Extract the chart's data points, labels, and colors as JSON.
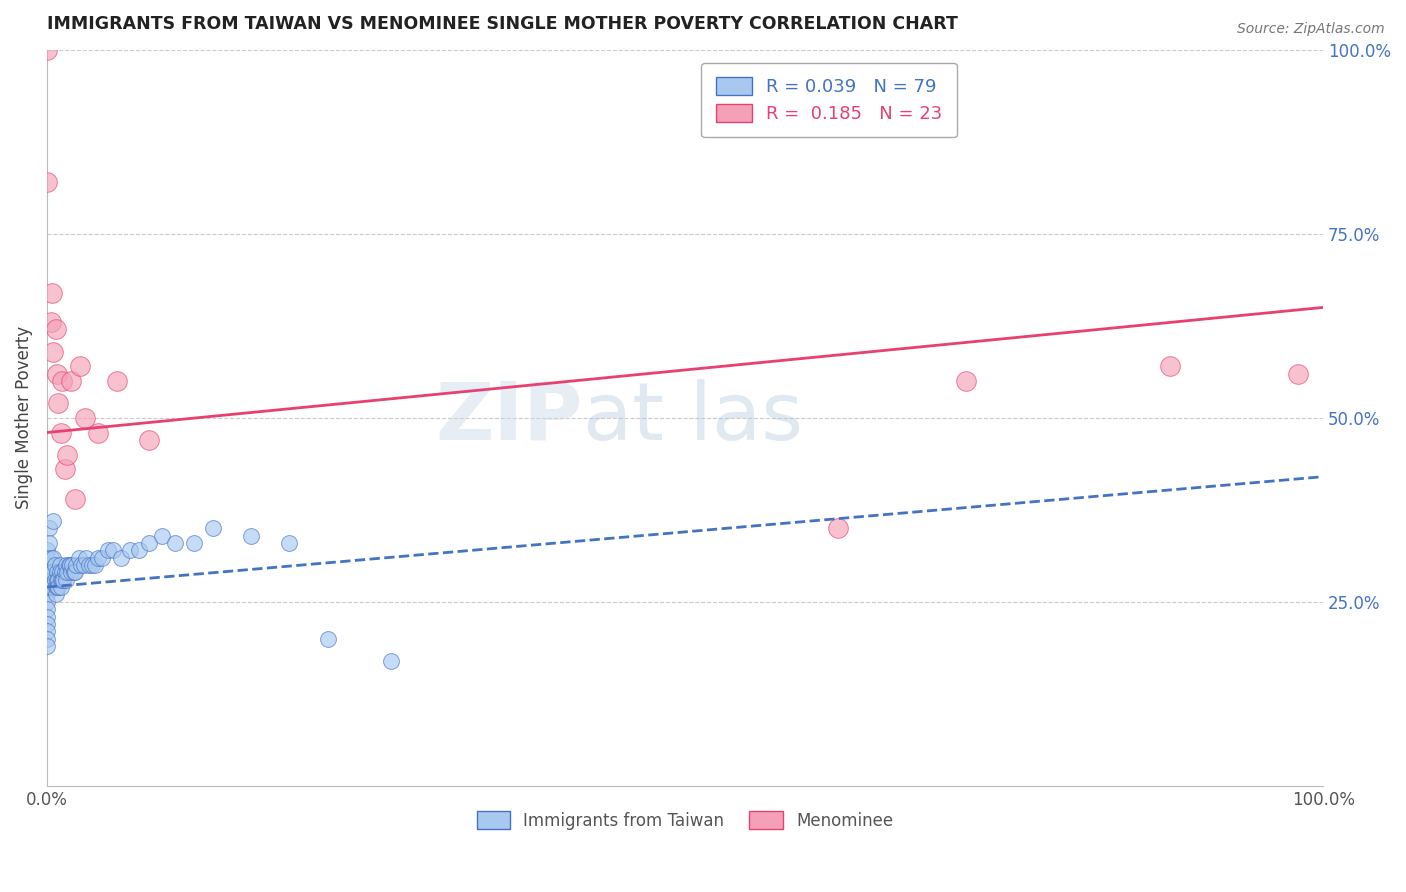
{
  "title": "IMMIGRANTS FROM TAIWAN VS MENOMINEE SINGLE MOTHER POVERTY CORRELATION CHART",
  "source": "Source: ZipAtlas.com",
  "ylabel": "Single Mother Poverty",
  "xlim": [
    0,
    1.0
  ],
  "ylim": [
    0,
    1.0
  ],
  "taiwan_R": 0.039,
  "taiwan_N": 79,
  "menominee_R": 0.185,
  "menominee_N": 23,
  "taiwan_color": "#A8C8F0",
  "menominee_color": "#F4A0B8",
  "taiwan_line_color": "#4472C4",
  "menominee_line_color": "#E84070",
  "taiwan_trend_start": 0.27,
  "taiwan_trend_end": 0.42,
  "menominee_trend_start": 0.48,
  "menominee_trend_end": 0.65,
  "taiwan_x": [
    0.0,
    0.0,
    0.0,
    0.0,
    0.0,
    0.0,
    0.0,
    0.0,
    0.0,
    0.0,
    0.0,
    0.0,
    0.0,
    0.0,
    0.0,
    0.0,
    0.0,
    0.0,
    0.0,
    0.0,
    0.002,
    0.002,
    0.003,
    0.003,
    0.004,
    0.004,
    0.005,
    0.005,
    0.005,
    0.006,
    0.006,
    0.007,
    0.007,
    0.008,
    0.008,
    0.008,
    0.009,
    0.009,
    0.01,
    0.01,
    0.011,
    0.011,
    0.012,
    0.012,
    0.013,
    0.014,
    0.015,
    0.015,
    0.016,
    0.017,
    0.018,
    0.019,
    0.02,
    0.021,
    0.022,
    0.023,
    0.025,
    0.027,
    0.029,
    0.031,
    0.033,
    0.035,
    0.038,
    0.04,
    0.043,
    0.048,
    0.052,
    0.058,
    0.065,
    0.072,
    0.08,
    0.09,
    0.1,
    0.115,
    0.13,
    0.16,
    0.19,
    0.22,
    0.27
  ],
  "taiwan_y": [
    0.28,
    0.27,
    0.26,
    0.25,
    0.24,
    0.23,
    0.22,
    0.21,
    0.2,
    0.19,
    0.32,
    0.3,
    0.29,
    0.28,
    0.27,
    0.31,
    0.3,
    0.29,
    0.28,
    0.27,
    0.35,
    0.33,
    0.31,
    0.29,
    0.28,
    0.27,
    0.36,
    0.31,
    0.29,
    0.3,
    0.28,
    0.27,
    0.26,
    0.29,
    0.28,
    0.27,
    0.28,
    0.27,
    0.3,
    0.29,
    0.28,
    0.27,
    0.29,
    0.28,
    0.28,
    0.29,
    0.3,
    0.28,
    0.29,
    0.3,
    0.3,
    0.29,
    0.3,
    0.29,
    0.29,
    0.3,
    0.31,
    0.3,
    0.3,
    0.31,
    0.3,
    0.3,
    0.3,
    0.31,
    0.31,
    0.32,
    0.32,
    0.31,
    0.32,
    0.32,
    0.33,
    0.34,
    0.33,
    0.33,
    0.35,
    0.34,
    0.33,
    0.2,
    0.17
  ],
  "menominee_x": [
    0.0,
    0.0,
    0.003,
    0.004,
    0.005,
    0.007,
    0.008,
    0.009,
    0.011,
    0.012,
    0.014,
    0.016,
    0.019,
    0.022,
    0.026,
    0.03,
    0.04,
    0.055,
    0.08,
    0.62,
    0.72,
    0.88,
    0.98
  ],
  "menominee_y": [
    1.0,
    0.82,
    0.63,
    0.67,
    0.59,
    0.62,
    0.56,
    0.52,
    0.48,
    0.55,
    0.43,
    0.45,
    0.55,
    0.39,
    0.57,
    0.5,
    0.48,
    0.55,
    0.47,
    0.35,
    0.55,
    0.57,
    0.56
  ]
}
